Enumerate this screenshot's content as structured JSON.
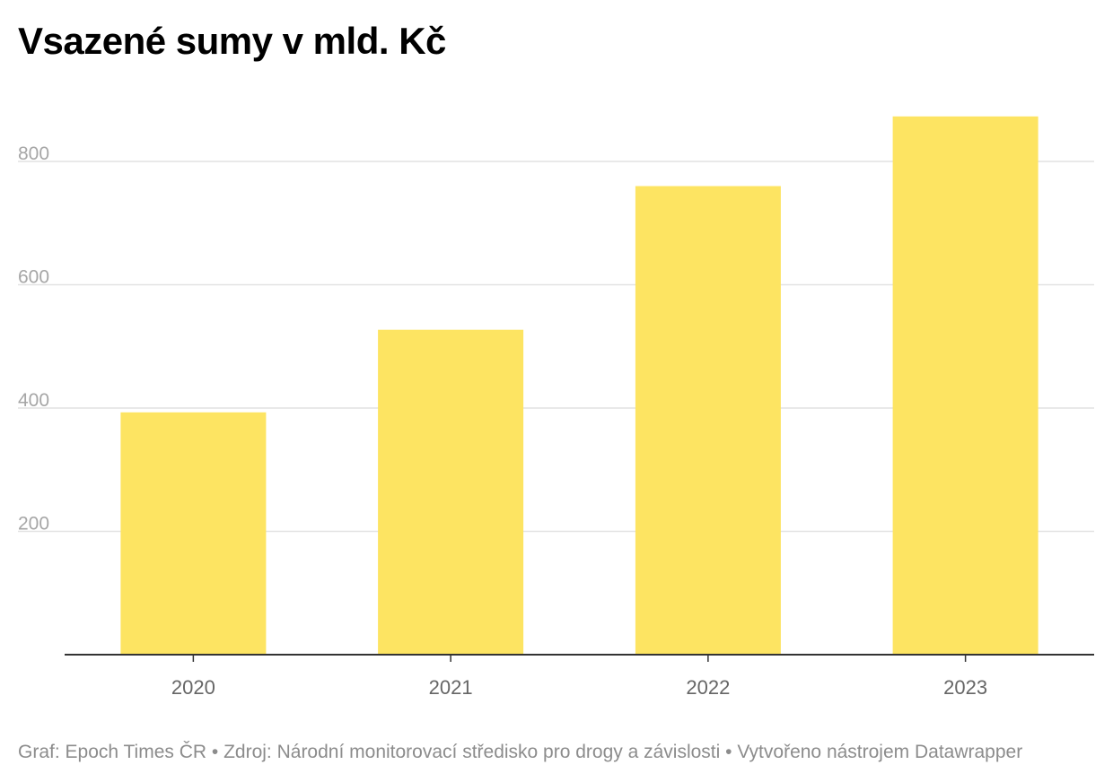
{
  "chart_data": {
    "type": "bar",
    "title": "Vsazené sumy v mld. Kč",
    "categories": [
      "2020",
      "2021",
      "2022",
      "2023"
    ],
    "values": [
      393,
      527,
      760,
      873
    ],
    "y_ticks": [
      200,
      400,
      600,
      800
    ],
    "ylim": [
      0,
      900
    ],
    "xlabel": "",
    "ylabel": "",
    "grid": true,
    "bar_color": "#fde462"
  },
  "footer": {
    "source": "Graf: Epoch Times ČR • Zdroj: Národní monitorovací středisko pro drogy a závislosti • Vytvořeno nástrojem Datawrapper"
  },
  "colors": {
    "gridline": "#e2e2e2",
    "axis": "#333333",
    "tick_label": "#a6a6a6",
    "category_label": "#666666",
    "footer": "#8c8c8c"
  }
}
